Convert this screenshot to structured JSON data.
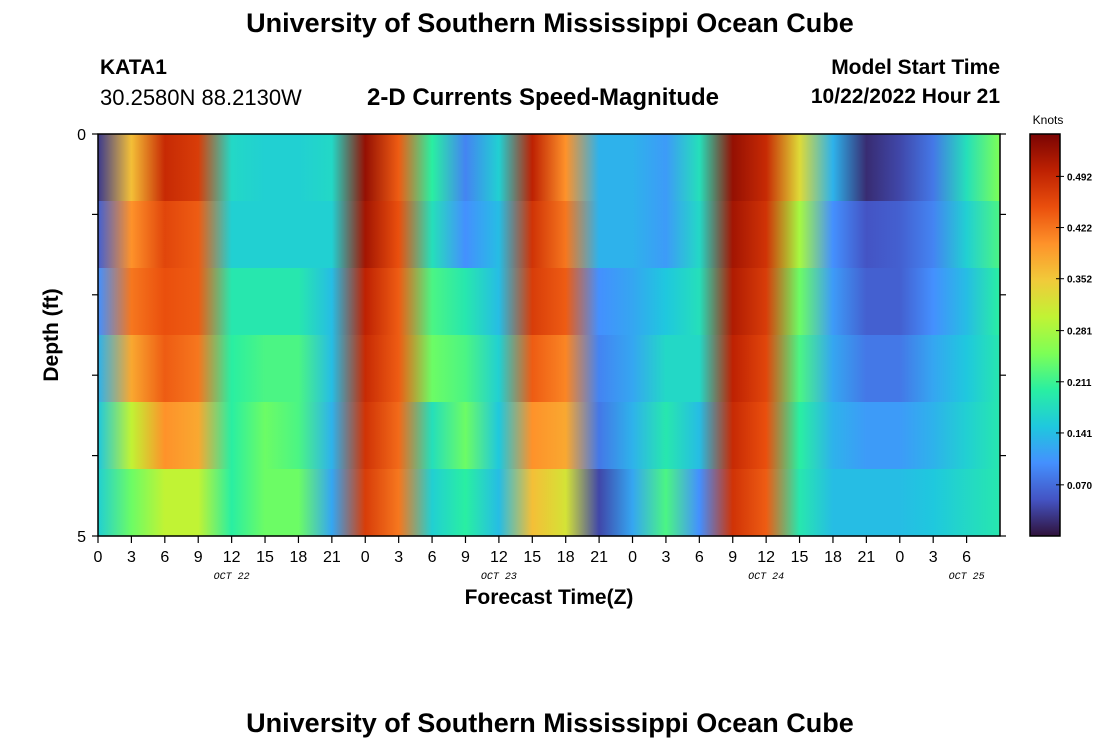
{
  "header": {
    "title": "University of Southern Mississippi Ocean Cube",
    "station_name": "KATA1",
    "station_coords": "30.2580N  88.2130W",
    "chart_title": "2-D Currents Speed-Magnitude",
    "model_start_label": "Model Start Time",
    "model_start_value": "10/22/2022 Hour 21"
  },
  "footer": {
    "title": "University of Southern Mississippi Ocean Cube"
  },
  "colormap": [
    "#30123b",
    "#4454c4",
    "#4490fe",
    "#1fc8de",
    "#29efa2",
    "#7dff56",
    "#c1f334",
    "#f1ca3a",
    "#fe922a",
    "#ea4f0d",
    "#be2102",
    "#7a0403"
  ],
  "chart_data": {
    "type": "heatmap",
    "title": "2-D Currents Speed-Magnitude",
    "xlabel": "Forecast Time(Z)",
    "ylabel": "Depth (ft)",
    "colorbar_label": "Knots",
    "color_range": [
      0.0,
      0.55
    ],
    "colorbar_ticks": [
      "0.492",
      "0.422",
      "0.352",
      "0.281",
      "0.211",
      "0.141",
      "0.070"
    ],
    "colorbar_tick_values": [
      0.492,
      0.422,
      0.352,
      0.281,
      0.211,
      0.141,
      0.07
    ],
    "x_range_hours": [
      0,
      81
    ],
    "x_tick_labels": [
      "0",
      "3",
      "6",
      "9",
      "12",
      "15",
      "18",
      "21",
      "0",
      "3",
      "6",
      "9",
      "12",
      "15",
      "18",
      "21",
      "0",
      "3",
      "6",
      "9",
      "12",
      "15",
      "18",
      "21",
      "0",
      "3",
      "6"
    ],
    "date_labels": [
      "OCT 22",
      "OCT 23",
      "OCT 24",
      "OCT 25"
    ],
    "date_label_hours": [
      12,
      36,
      60,
      78
    ],
    "y_range": [
      0,
      5
    ],
    "y_tick_labels": [
      "0",
      "5"
    ],
    "y_tick_values": [
      0,
      5
    ],
    "depth_bins": 5,
    "hours": [
      0,
      3,
      6,
      9,
      12,
      15,
      18,
      21,
      24,
      27,
      30,
      33,
      36,
      39,
      42,
      45,
      48,
      51,
      54,
      57,
      60,
      63,
      66,
      69,
      72,
      75,
      78,
      81
    ],
    "speed_knots": [
      [
        0.03,
        0.36,
        0.49,
        0.47,
        0.17,
        0.16,
        0.16,
        0.17,
        0.53,
        0.44,
        0.2,
        0.09,
        0.16,
        0.5,
        0.4,
        0.13,
        0.13,
        0.11,
        0.18,
        0.53,
        0.49,
        0.33,
        0.13,
        0.02,
        0.04,
        0.08,
        0.18,
        0.25
      ],
      [
        0.06,
        0.4,
        0.46,
        0.44,
        0.16,
        0.16,
        0.16,
        0.16,
        0.52,
        0.45,
        0.18,
        0.1,
        0.14,
        0.48,
        0.42,
        0.13,
        0.13,
        0.11,
        0.17,
        0.52,
        0.48,
        0.28,
        0.1,
        0.05,
        0.06,
        0.09,
        0.16,
        0.22
      ],
      [
        0.1,
        0.42,
        0.45,
        0.44,
        0.19,
        0.19,
        0.19,
        0.14,
        0.5,
        0.44,
        0.22,
        0.19,
        0.14,
        0.47,
        0.44,
        0.1,
        0.12,
        0.15,
        0.18,
        0.51,
        0.47,
        0.24,
        0.11,
        0.06,
        0.06,
        0.1,
        0.14,
        0.2
      ],
      [
        0.13,
        0.38,
        0.44,
        0.42,
        0.2,
        0.22,
        0.22,
        0.14,
        0.49,
        0.44,
        0.24,
        0.22,
        0.16,
        0.44,
        0.41,
        0.09,
        0.12,
        0.17,
        0.17,
        0.5,
        0.46,
        0.22,
        0.12,
        0.08,
        0.08,
        0.12,
        0.15,
        0.19
      ],
      [
        0.15,
        0.3,
        0.4,
        0.38,
        0.2,
        0.24,
        0.22,
        0.13,
        0.48,
        0.43,
        0.18,
        0.24,
        0.15,
        0.4,
        0.38,
        0.08,
        0.13,
        0.19,
        0.14,
        0.49,
        0.45,
        0.2,
        0.13,
        0.11,
        0.11,
        0.13,
        0.16,
        0.19
      ],
      [
        0.16,
        0.24,
        0.3,
        0.3,
        0.2,
        0.24,
        0.24,
        0.12,
        0.47,
        0.42,
        0.16,
        0.2,
        0.14,
        0.36,
        0.32,
        0.04,
        0.12,
        0.22,
        0.1,
        0.48,
        0.44,
        0.19,
        0.14,
        0.14,
        0.14,
        0.15,
        0.17,
        0.19
      ]
    ]
  }
}
